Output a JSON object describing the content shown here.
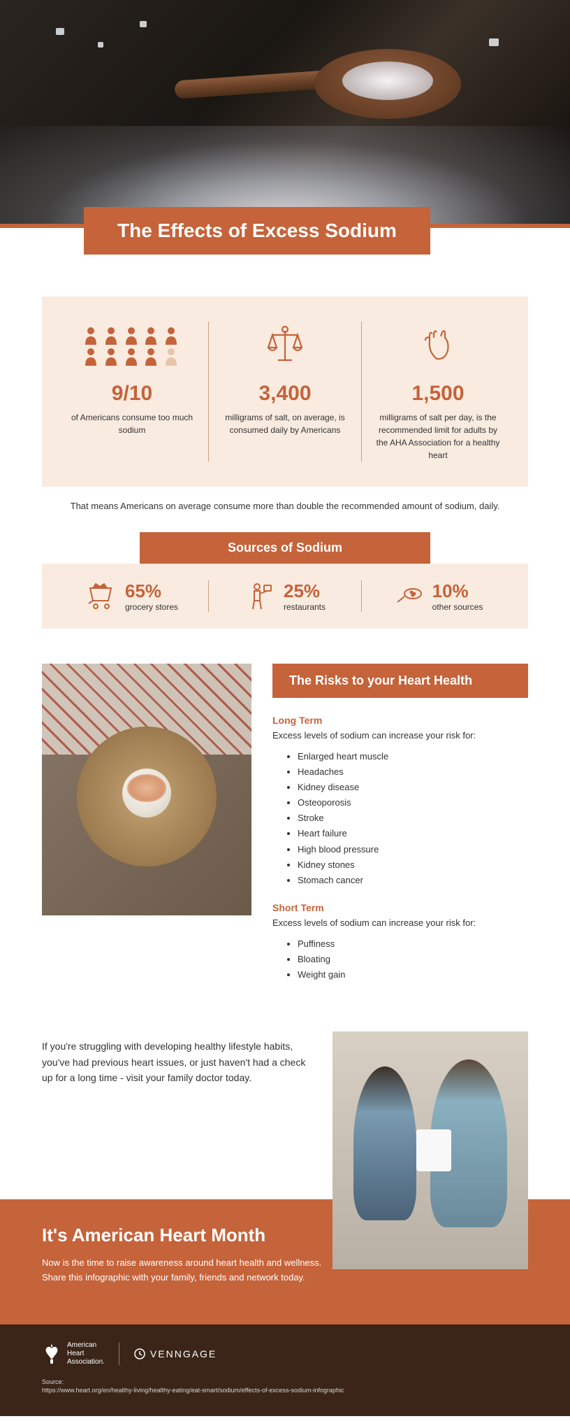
{
  "title": "The Effects of Excess Sodium",
  "colors": {
    "primary": "#c5633a",
    "card_bg": "#f9ebe0",
    "footer_bg": "#3a2518",
    "text": "#333333"
  },
  "stats": [
    {
      "value": "9/10",
      "label": "of Americans consume too much sodium",
      "icon": "people"
    },
    {
      "value": "3,400",
      "label": "milligrams of salt, on average, is consumed daily by Americans",
      "icon": "scale"
    },
    {
      "value": "1,500",
      "label": "milligrams of salt per day, is the recommended limit for adults by the AHA Association for a healthy heart",
      "icon": "heart"
    }
  ],
  "caption": "That means Americans on average consume more than double the recommended amount of sodium, daily.",
  "sources": {
    "title": "Sources of Sodium",
    "items": [
      {
        "value": "65%",
        "label": "grocery stores",
        "icon": "cart"
      },
      {
        "value": "25%",
        "label": "restaurants",
        "icon": "waiter"
      },
      {
        "value": "10%",
        "label": "other sources",
        "icon": "spoon"
      }
    ]
  },
  "risks": {
    "title": "The Risks to your Heart Health",
    "long_term": {
      "heading": "Long Term",
      "intro": "Excess levels of sodium can increase your risk for:",
      "items": [
        "Enlarged heart muscle",
        "Headaches",
        "Kidney disease",
        "Osteoporosis",
        "Stroke",
        "Heart failure",
        "High blood pressure",
        "Kidney stones",
        "Stomach cancer"
      ]
    },
    "short_term": {
      "heading": "Short Term",
      "intro": "Excess levels of sodium can increase your risk for:",
      "items": [
        "Puffiness",
        "Bloating",
        "Weight gain"
      ]
    }
  },
  "advice": "If you're struggling with developing healthy lifestyle habits, you've had previous heart issues, or just haven't had a check up for a long time - visit your family doctor today.",
  "cta": {
    "title": "It's American Heart Month",
    "text": "Now is the time to raise awareness around heart health and wellness. Share this infographic with your family, friends and network today."
  },
  "footer": {
    "aha": "American\nHeart\nAssociation.",
    "venngage": "VENNGAGE",
    "source_label": "Source:",
    "source_url": "https://www.heart.org/en/healthy-living/healthy-eating/eat-smart/sodium/effects-of-excess-sodium-infographic"
  }
}
